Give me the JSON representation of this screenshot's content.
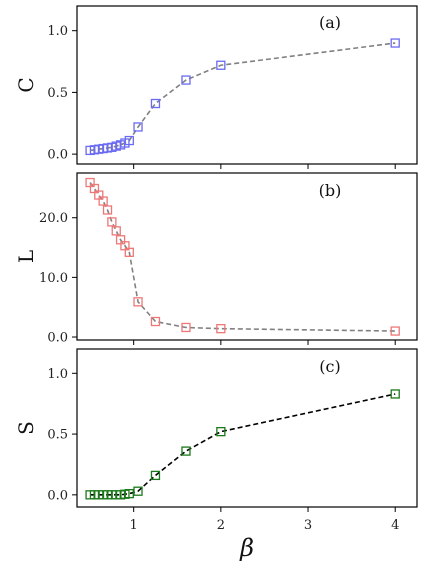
{
  "chart_data": [
    {
      "type": "line",
      "panel_label": "(a)",
      "ylabel": "C",
      "xlabel": "",
      "xlim": [
        0.35,
        4.25
      ],
      "ylim": [
        -0.08,
        1.2
      ],
      "xticks": [
        1,
        2,
        3,
        4
      ],
      "xtick_labels": [
        "",
        "",
        "",
        ""
      ],
      "yticks": [
        0,
        0.5,
        1
      ],
      "ytick_labels": [
        "0.0",
        "0.5",
        "1.0"
      ],
      "grid": false,
      "series": [
        {
          "color": "#6a6af2",
          "line_color": "#808080",
          "line_style": "dashed",
          "marker": "square-open",
          "x": [
            0.5,
            0.55,
            0.6,
            0.65,
            0.7,
            0.75,
            0.8,
            0.85,
            0.9,
            0.95,
            1.05,
            1.25,
            1.6,
            2.0,
            4.0
          ],
          "y": [
            0.03,
            0.035,
            0.04,
            0.045,
            0.05,
            0.055,
            0.065,
            0.075,
            0.09,
            0.11,
            0.22,
            0.41,
            0.6,
            0.72,
            0.9
          ]
        }
      ]
    },
    {
      "type": "line",
      "panel_label": "(b)",
      "ylabel": "L",
      "xlabel": "",
      "xlim": [
        0.35,
        4.25
      ],
      "ylim": [
        -0.5,
        27.5
      ],
      "xticks": [
        1,
        2,
        3,
        4
      ],
      "xtick_labels": [
        "",
        "",
        "",
        ""
      ],
      "yticks": [
        0,
        10,
        20
      ],
      "ytick_labels": [
        "0.0",
        "10.0",
        "20.0"
      ],
      "grid": false,
      "series": [
        {
          "color": "#ee7777",
          "line_color": "#808080",
          "line_style": "dashed",
          "marker": "square-open",
          "x": [
            0.5,
            0.55,
            0.6,
            0.65,
            0.7,
            0.75,
            0.8,
            0.85,
            0.9,
            0.95,
            1.05,
            1.25,
            1.6,
            2.0,
            4.0
          ],
          "y": [
            25.9,
            24.9,
            23.8,
            22.8,
            21.3,
            19.3,
            17.8,
            16.3,
            15.3,
            14.2,
            5.9,
            2.6,
            1.6,
            1.4,
            1.0
          ]
        }
      ]
    },
    {
      "type": "line",
      "panel_label": "(c)",
      "ylabel": "S",
      "xlabel": "β",
      "xlim": [
        0.35,
        4.25
      ],
      "ylim": [
        -0.1,
        1.2
      ],
      "xticks": [
        1,
        2,
        3,
        4
      ],
      "xtick_labels": [
        "1",
        "2",
        "3",
        "4"
      ],
      "yticks": [
        0,
        0.5,
        1
      ],
      "ytick_labels": [
        "0.0",
        "0.5",
        "1.0"
      ],
      "grid": false,
      "series": [
        {
          "color": "#1a7a1a",
          "line_color": "#000000",
          "line_style": "dashed",
          "marker": "square-open",
          "x": [
            0.5,
            0.55,
            0.6,
            0.65,
            0.7,
            0.75,
            0.8,
            0.85,
            0.9,
            0.95,
            1.05,
            1.25,
            1.6,
            2.0,
            4.0
          ],
          "y": [
            0.0,
            0.0,
            0.0,
            0.0,
            0.0,
            0.0,
            0.0,
            0.0,
            0.005,
            0.01,
            0.03,
            0.16,
            0.36,
            0.52,
            0.83
          ]
        }
      ]
    }
  ]
}
